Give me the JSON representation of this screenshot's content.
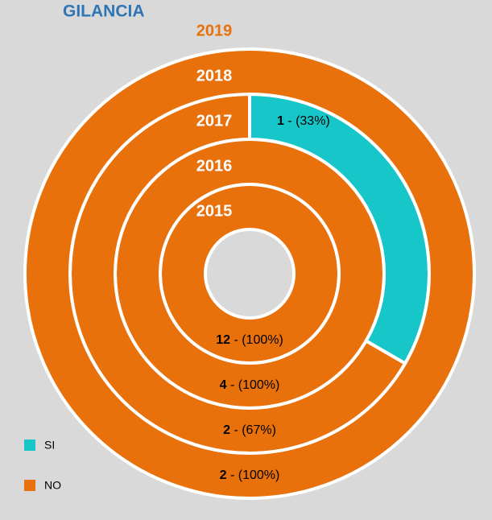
{
  "chart_data": {
    "type": "ring-donut",
    "title": "GILANCIA",
    "categories": [
      "2015",
      "2016",
      "2017",
      "2018",
      "2019"
    ],
    "series": [
      {
        "name": "SI",
        "color": "#17c6c8",
        "values": [
          0,
          0,
          1,
          0,
          null
        ],
        "value_labels": [
          null,
          null,
          "1 - (33%)",
          null,
          null
        ]
      },
      {
        "name": "NO",
        "color": "#e8710c",
        "values": [
          12,
          4,
          2,
          2,
          null
        ],
        "value_labels": [
          "12 - (100%)",
          "4 - (100%)",
          "2 - (67%)",
          "2 - (100%)",
          null
        ]
      }
    ]
  }
}
